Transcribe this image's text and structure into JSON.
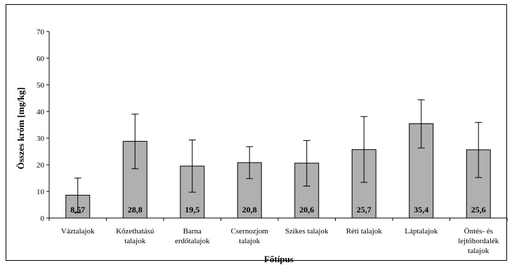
{
  "chart_data": {
    "type": "bar",
    "ylabel": "Összes króm [mg/kg]",
    "xlabel": "Főtípus",
    "ylim": [
      0,
      70
    ],
    "yticks": [
      0,
      10,
      20,
      30,
      40,
      50,
      60,
      70
    ],
    "grid": false,
    "bar_color": "#b0b0b0",
    "categories": [
      [
        "Váztalajok"
      ],
      [
        "Kőzethatású",
        "talajok"
      ],
      [
        "Barna",
        "erdőtalajok"
      ],
      [
        "Csernozjom",
        "talajok"
      ],
      [
        "Szikes talajok"
      ],
      [
        "Réti talajok"
      ],
      [
        "Láptalajok"
      ],
      [
        "Öntés- és",
        "lejtőhordalék",
        "talajok"
      ]
    ],
    "values": [
      8.57,
      28.8,
      19.5,
      20.8,
      20.6,
      25.7,
      35.4,
      25.6
    ],
    "value_labels": [
      "8,57",
      "28,8",
      "19,5",
      "20,8",
      "20,6",
      "25,7",
      "35,4",
      "25,6"
    ],
    "error_low": [
      2.0,
      18.5,
      9.7,
      14.8,
      12.0,
      13.4,
      26.3,
      15.2
    ],
    "error_high": [
      15.0,
      39.0,
      29.3,
      26.8,
      29.1,
      38.1,
      44.4,
      35.9
    ]
  }
}
